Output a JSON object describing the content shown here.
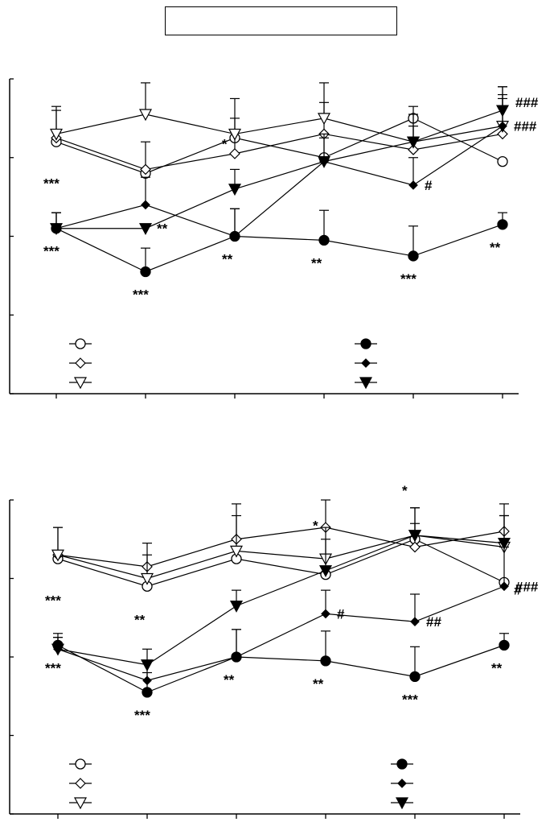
{
  "title": "",
  "chart_data": [
    {
      "type": "line",
      "x": [
        1,
        2,
        3,
        4,
        5,
        6
      ],
      "ylim": [
        0,
        4
      ],
      "xlabel": "",
      "ylabel": "",
      "series": [
        {
          "marker": "open-circle",
          "values": [
            3.2,
            2.8,
            3.25,
            3.0,
            3.5,
            2.95
          ],
          "errors": [
            0.0,
            0.0,
            0.0,
            0.0,
            0.0,
            0.0
          ]
        },
        {
          "marker": "open-diamond",
          "values": [
            3.25,
            2.85,
            3.05,
            3.3,
            3.1,
            3.3
          ],
          "errors": [
            0.35,
            0.35,
            0.45,
            0.4,
            0.3,
            0.45
          ]
        },
        {
          "marker": "open-triangle",
          "values": [
            3.3,
            3.55,
            3.3,
            3.5,
            3.2,
            3.4
          ],
          "errors": [
            0.35,
            0.4,
            0.45,
            0.45,
            0.45,
            0.5
          ]
        },
        {
          "marker": "filled-circle",
          "values": [
            2.1,
            1.55,
            2.0,
            1.95,
            1.75,
            2.15
          ],
          "errors": [
            0.2,
            0.3,
            0.35,
            0.38,
            0.38,
            0.15
          ]
        },
        {
          "marker": "filled-diamond",
          "values": [
            2.1,
            2.4,
            2.0,
            2.95,
            2.65,
            3.4
          ],
          "errors": [
            0.2,
            0.35,
            0.35,
            0.35,
            0.35,
            0.4
          ]
        },
        {
          "marker": "filled-triangle",
          "values": [
            2.1,
            2.1,
            2.6,
            2.95,
            3.2,
            3.6
          ],
          "errors": [
            0.2,
            0.0,
            0.25,
            0.3,
            0.35,
            0.3
          ]
        }
      ],
      "annotations": [
        {
          "text": "***",
          "x": 1,
          "pos": "above"
        },
        {
          "text": "***",
          "x": 1,
          "pos": "below"
        },
        {
          "text": "***",
          "x": 2,
          "pos": "below"
        },
        {
          "text": "**",
          "x": 2,
          "pos": "right"
        },
        {
          "text": "*",
          "x": 3,
          "pos": "above"
        },
        {
          "text": "**",
          "x": 3,
          "pos": "below"
        },
        {
          "text": "**",
          "x": 4,
          "pos": "below"
        },
        {
          "text": "#",
          "x": 5,
          "pos": "right"
        },
        {
          "text": "***",
          "x": 5,
          "pos": "below"
        },
        {
          "text": "###",
          "x": 6,
          "pos": "right-top"
        },
        {
          "text": "###",
          "x": 6,
          "pos": "right"
        },
        {
          "text": "**",
          "x": 6,
          "pos": "below"
        }
      ],
      "legend": "bottom-left, unlabeled"
    },
    {
      "type": "line",
      "x": [
        1,
        2,
        3,
        4,
        5,
        6
      ],
      "ylim": [
        0,
        4
      ],
      "xlabel": "",
      "ylabel": "",
      "series": [
        {
          "marker": "open-circle",
          "values": [
            3.25,
            2.9,
            3.25,
            3.05,
            3.5,
            2.95
          ],
          "errors": [
            0.0,
            0.0,
            0.0,
            0.0,
            0.0,
            0.0
          ]
        },
        {
          "marker": "open-diamond",
          "values": [
            3.3,
            3.15,
            3.5,
            3.65,
            3.4,
            3.6
          ],
          "errors": [
            0.35,
            0.3,
            0.45,
            0.35,
            0.3,
            0.35
          ]
        },
        {
          "marker": "open-triangle",
          "values": [
            3.3,
            3.0,
            3.35,
            3.25,
            3.55,
            3.4
          ],
          "errors": [
            0.35,
            0.3,
            0.45,
            0.4,
            0.35,
            0.4
          ]
        },
        {
          "marker": "filled-circle",
          "values": [
            2.15,
            1.55,
            2.0,
            1.95,
            1.75,
            2.15
          ],
          "errors": [
            0.15,
            0.25,
            0.35,
            0.38,
            0.38,
            0.15
          ]
        },
        {
          "marker": "filled-diamond",
          "values": [
            2.1,
            1.7,
            2.0,
            2.55,
            2.45,
            2.9
          ],
          "errors": [
            0.15,
            0.25,
            0.35,
            0.3,
            0.35,
            0.5
          ]
        },
        {
          "marker": "filled-triangle",
          "values": [
            2.1,
            1.9,
            2.65,
            3.1,
            3.55,
            3.45
          ],
          "errors": [
            0.15,
            0.2,
            0.2,
            0.4,
            0.35,
            0.35
          ]
        }
      ],
      "annotations": [
        {
          "text": "***",
          "x": 1,
          "pos": "above"
        },
        {
          "text": "***",
          "x": 1,
          "pos": "below"
        },
        {
          "text": "**",
          "x": 2,
          "pos": "above"
        },
        {
          "text": "***",
          "x": 2,
          "pos": "below"
        },
        {
          "text": "**",
          "x": 3,
          "pos": "below"
        },
        {
          "text": "#",
          "x": 4,
          "pos": "right"
        },
        {
          "text": "*",
          "x": 4,
          "pos": "above"
        },
        {
          "text": "**",
          "x": 4,
          "pos": "below"
        },
        {
          "text": "##",
          "x": 5,
          "pos": "right"
        },
        {
          "text": "*",
          "x": 5,
          "pos": "above"
        },
        {
          "text": "***",
          "x": 5,
          "pos": "below"
        },
        {
          "text": "###",
          "x": 6,
          "pos": "right"
        },
        {
          "text": "#",
          "x": 6,
          "pos": "right-bottom"
        },
        {
          "text": "**",
          "x": 6,
          "pos": "below"
        }
      ],
      "legend": "bottom-left, unlabeled"
    }
  ]
}
